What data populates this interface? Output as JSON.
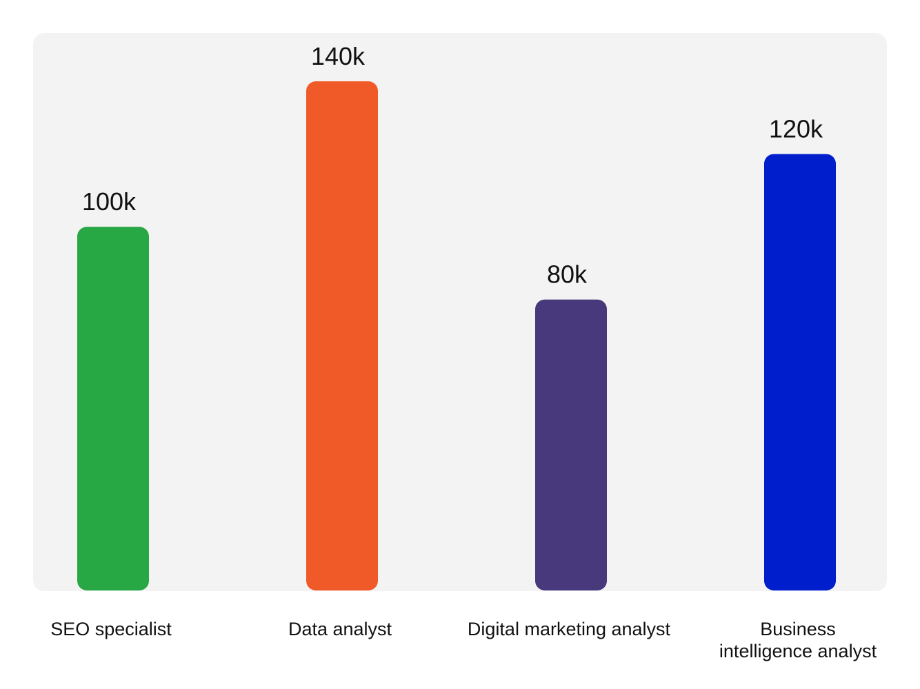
{
  "chart_data": {
    "type": "bar",
    "categories": [
      "SEO specialist",
      "Data analyst",
      "Digital marketing analyst",
      "Business intelligence analyst"
    ],
    "category_lines": [
      [
        "SEO specialist"
      ],
      [
        "Data analyst"
      ],
      [
        "Digital marketing analyst"
      ],
      [
        "Business",
        "intelligence analyst"
      ]
    ],
    "values": [
      100000,
      140000,
      80000,
      120000
    ],
    "value_labels": [
      "100k",
      "140k",
      "80k",
      "120k"
    ],
    "colors": [
      "#28a745",
      "#f05a28",
      "#48387c",
      "#011ecc"
    ],
    "background_color": "#f3f3f3",
    "title": "",
    "xlabel": "",
    "ylabel": "",
    "grid": false,
    "legend": "none"
  }
}
